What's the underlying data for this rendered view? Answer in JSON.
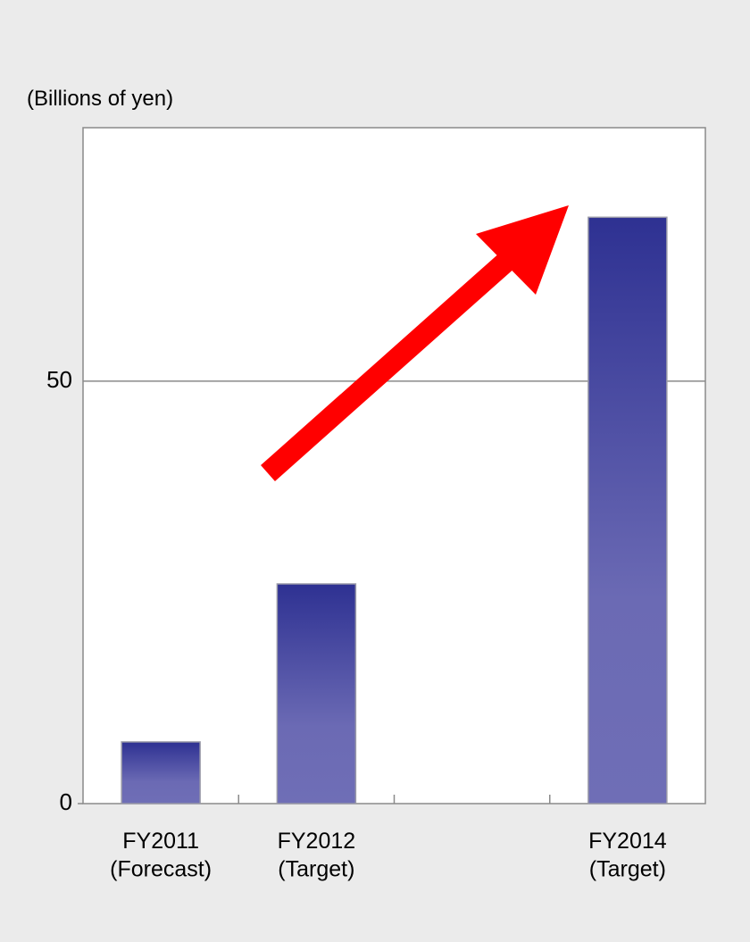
{
  "chart_data": {
    "type": "bar",
    "y_axis_label": "(Billions of yen)",
    "categories": [
      "FY2011\n(Forecast)",
      "FY2012\n(Target)",
      null,
      "FY2014\n(Target)"
    ],
    "values": [
      7.3,
      26,
      null,
      69.4
    ],
    "color": "#2e3192",
    "ylim": [
      0,
      80
    ],
    "yticks": [
      0,
      50
    ],
    "grid": true
  }
}
